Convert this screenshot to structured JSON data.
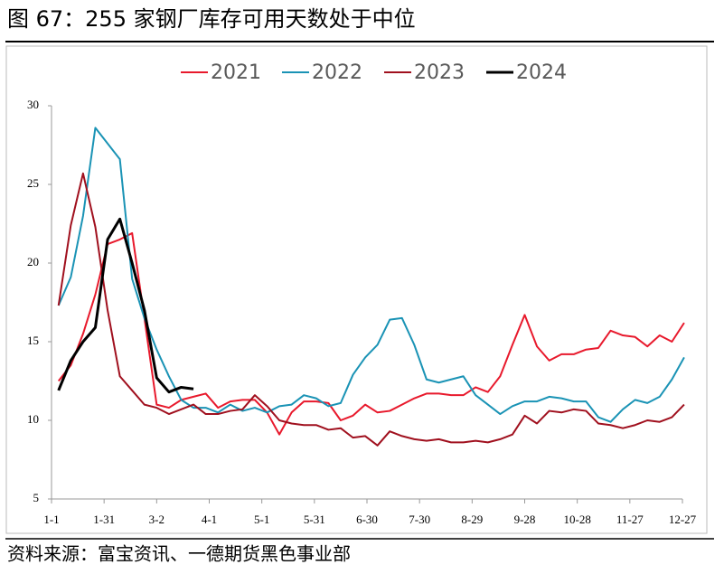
{
  "chart_data": {
    "type": "line",
    "title": "图 67：255 家钢厂库存可用天数处于中位",
    "source": "资料来源：富宝资讯、一德期货黑色事业部",
    "x": [
      4,
      11,
      18,
      25,
      32,
      39,
      46,
      53,
      60,
      67,
      74,
      81,
      88,
      95,
      102,
      109,
      116,
      123,
      130,
      137,
      144,
      151,
      158,
      165,
      172,
      179,
      186,
      193,
      200,
      207,
      214,
      221,
      228,
      235,
      242,
      249,
      256,
      263,
      270,
      277,
      284,
      291,
      298,
      305,
      312,
      319,
      326,
      333,
      340,
      347,
      354,
      361
    ],
    "xlim": [
      0,
      360
    ],
    "xticks": [
      {
        "value": 0,
        "label": "1-1"
      },
      {
        "value": 30,
        "label": "1-31"
      },
      {
        "value": 60,
        "label": "3-2"
      },
      {
        "value": 90,
        "label": "4-1"
      },
      {
        "value": 120,
        "label": "5-1"
      },
      {
        "value": 150,
        "label": "5-31"
      },
      {
        "value": 180,
        "label": "6-30"
      },
      {
        "value": 210,
        "label": "7-30"
      },
      {
        "value": 240,
        "label": "8-29"
      },
      {
        "value": 270,
        "label": "9-28"
      },
      {
        "value": 300,
        "label": "10-28"
      },
      {
        "value": 330,
        "label": "11-27"
      },
      {
        "value": 360,
        "label": "12-27"
      }
    ],
    "ylim": [
      5,
      30
    ],
    "yticks": [
      5,
      10,
      15,
      20,
      25,
      30
    ],
    "grid": false,
    "legend": "top",
    "series": [
      {
        "name": "2021",
        "color": "#e8192c",
        "width": 2,
        "values": [
          12.5,
          13.5,
          15.5,
          18,
          21.2,
          21.5,
          21.9,
          16.5,
          11,
          10.8,
          11.3,
          11.5,
          11.7,
          10.8,
          11.2,
          11.3,
          11.3,
          10.5,
          9.1,
          10.5,
          11.2,
          11.2,
          11.1,
          10,
          10.3,
          11,
          10.5,
          10.6,
          11,
          11.4,
          11.7,
          11.7,
          11.6,
          11.6,
          12.1,
          11.8,
          12.8,
          14.8,
          16.7,
          14.7,
          13.8,
          14.2,
          14.2,
          14.5,
          14.6,
          15.7,
          15.4,
          15.3,
          14.7,
          15.4,
          15,
          16.2
        ]
      },
      {
        "name": "2022",
        "color": "#1a93b5",
        "width": 2,
        "values": [
          17.3,
          19.1,
          23,
          28.6,
          27.6,
          26.6,
          19,
          16.5,
          14.5,
          12.8,
          11.3,
          10.8,
          10.8,
          10.5,
          11,
          10.6,
          10.8,
          10.5,
          10.9,
          11,
          11.6,
          11.4,
          10.9,
          11.1,
          12.9,
          14,
          14.8,
          16.4,
          16.5,
          14.8,
          12.6,
          12.4,
          12.6,
          12.8,
          11.6,
          11,
          10.4,
          10.9,
          11.2,
          11.2,
          11.5,
          11.4,
          11.2,
          11.2,
          10.2,
          9.9,
          10.7,
          11.3,
          11.1,
          11.5,
          12.6,
          14
        ]
      },
      {
        "name": "2023",
        "color": "#a0101e",
        "width": 2,
        "values": [
          17.3,
          22.4,
          25.7,
          22.3,
          17,
          12.8,
          11.9,
          11,
          10.8,
          10.4,
          10.7,
          11,
          10.4,
          10.4,
          10.6,
          10.7,
          11.6,
          10.9,
          10,
          9.8,
          9.7,
          9.7,
          9.4,
          9.5,
          8.9,
          9,
          8.4,
          9.3,
          9,
          8.8,
          8.7,
          8.8,
          8.6,
          8.6,
          8.7,
          8.6,
          8.8,
          9.1,
          10.3,
          9.8,
          10.6,
          10.5,
          10.7,
          10.6,
          9.8,
          9.7,
          9.5,
          9.7,
          10,
          9.9,
          10.2,
          11
        ]
      },
      {
        "name": "2024",
        "color": "#000000",
        "width": 3,
        "values": [
          11.9,
          13.8,
          15,
          15.9,
          21.5,
          22.8,
          20,
          17,
          12.7,
          11.8,
          12.1,
          12,
          null,
          null,
          null,
          null,
          null,
          null,
          null,
          null,
          null,
          null,
          null,
          null,
          null,
          null,
          null,
          null,
          null,
          null,
          null,
          null,
          null,
          null,
          null,
          null,
          null,
          null,
          null,
          null,
          null,
          null,
          null,
          null,
          null,
          null,
          null,
          null,
          null,
          null,
          null,
          null
        ]
      }
    ]
  }
}
